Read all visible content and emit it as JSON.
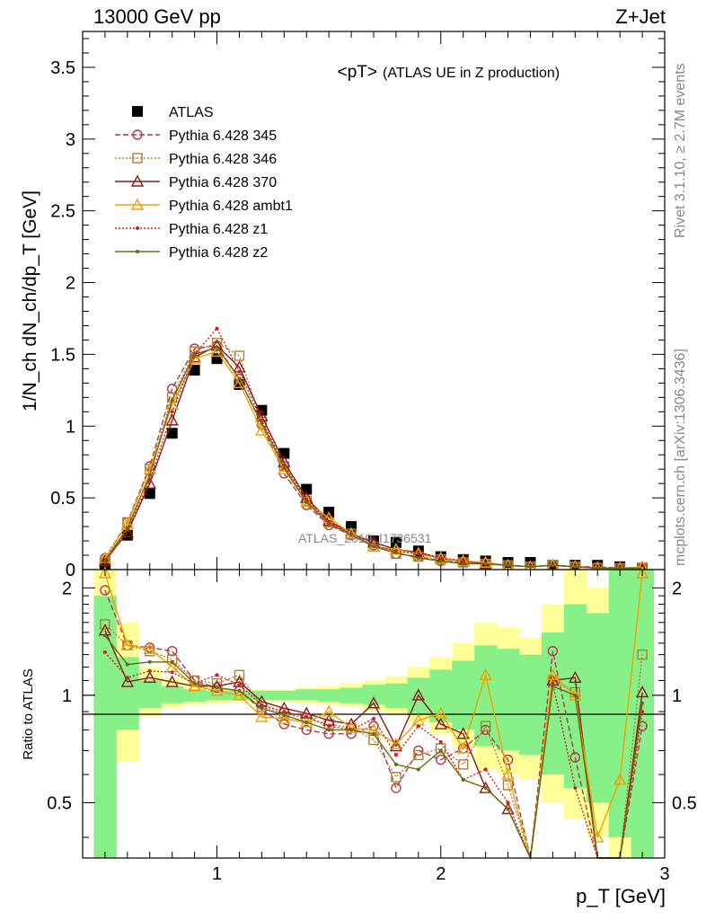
{
  "header": {
    "energy": "13000 GeV pp",
    "process": "Z+Jet",
    "side_rivet": "Rivet 3.1.10, ≥ 2.7M events",
    "side_mcplots": "mcplots.cern.ch [arXiv:1306.3436]",
    "watermark": "ATLAS_2019_I1736531"
  },
  "chart_data": [
    {
      "type": "line",
      "panel": "main",
      "title_main": "<pT>",
      "title_sub": "(ATLAS UE in Z production)",
      "ylabel": "1/N_ch dN_ch/dp_T [GeV]",
      "xlabel": "",
      "xlim": [
        0.4,
        3.0
      ],
      "ylim": [
        0,
        3.75
      ],
      "yticks": [
        "0",
        "0.5",
        "1",
        "1.5",
        "2",
        "2.5",
        "3",
        "3.5"
      ],
      "legend_position": "top-left",
      "x": [
        0.5,
        0.6,
        0.7,
        0.8,
        0.9,
        1.0,
        1.1,
        1.2,
        1.3,
        1.4,
        1.5,
        1.6,
        1.7,
        1.8,
        1.9,
        2.0,
        2.1,
        2.2,
        2.3,
        2.4,
        2.5,
        2.6,
        2.7,
        2.8,
        2.9
      ],
      "series": [
        {
          "name": "ATLAS",
          "color": "#000000",
          "marker": "square-filled",
          "values": [
            0.04,
            0.24,
            0.53,
            0.95,
            1.39,
            1.47,
            1.29,
            1.11,
            0.81,
            0.56,
            0.4,
            0.3,
            0.2,
            0.19,
            0.13,
            0.09,
            0.07,
            0.06,
            0.05,
            0.05,
            0.03,
            0.03,
            0.03,
            0.02,
            0.01
          ]
        },
        {
          "name": "Pythia 6.428 345",
          "color": "#b03a48",
          "marker": "circle-open",
          "dash": "6,3",
          "values": [
            0.08,
            0.33,
            0.72,
            1.26,
            1.54,
            1.56,
            1.33,
            1.01,
            0.67,
            0.45,
            0.31,
            0.24,
            0.17,
            0.11,
            0.09,
            0.06,
            0.05,
            0.04,
            0.03,
            0.02,
            0.03,
            0.02,
            0.02,
            0.01,
            0.01
          ]
        },
        {
          "name": "Pythia 6.428 346",
          "color": "#b08030",
          "marker": "square-open",
          "dash": "2,2",
          "values": [
            0.06,
            0.33,
            0.7,
            1.2,
            1.52,
            1.58,
            1.49,
            1.03,
            0.72,
            0.48,
            0.33,
            0.25,
            0.16,
            0.11,
            0.09,
            0.07,
            0.05,
            0.04,
            0.03,
            0.02,
            0.03,
            0.02,
            0.01,
            0.01,
            0.01
          ]
        },
        {
          "name": "Pythia 6.428 370",
          "color": "#8b1a1a",
          "marker": "triangle-open",
          "dash": "",
          "values": [
            0.06,
            0.26,
            0.6,
            1.04,
            1.48,
            1.56,
            1.41,
            1.07,
            0.75,
            0.5,
            0.34,
            0.25,
            0.19,
            0.14,
            0.12,
            0.08,
            0.06,
            0.04,
            0.03,
            0.02,
            0.03,
            0.02,
            0.01,
            0.01,
            0.01
          ]
        },
        {
          "name": "Pythia 6.428 ambt1",
          "color": "#f0a000",
          "marker": "triangle-open",
          "dash": "",
          "values": [
            0.08,
            0.32,
            0.7,
            1.15,
            1.47,
            1.52,
            1.3,
            0.97,
            0.7,
            0.47,
            0.36,
            0.25,
            0.16,
            0.14,
            0.11,
            0.08,
            0.06,
            0.05,
            0.03,
            0.02,
            0.03,
            0.02,
            0.01,
            0.01,
            0.02
          ]
        },
        {
          "name": "Pythia 6.428 z1",
          "color": "#d42020",
          "marker": "dot",
          "dash": "2,2",
          "values": [
            0.05,
            0.28,
            0.62,
            1.1,
            1.5,
            1.68,
            1.38,
            1.04,
            0.73,
            0.49,
            0.33,
            0.25,
            0.17,
            0.13,
            0.11,
            0.08,
            0.06,
            0.04,
            0.03,
            0.02,
            0.03,
            0.02,
            0.01,
            0.01,
            0.01
          ]
        },
        {
          "name": "Pythia 6.428 z2",
          "color": "#6b6b10",
          "marker": "dot",
          "dash": "",
          "values": [
            0.06,
            0.29,
            0.66,
            1.18,
            1.5,
            1.55,
            1.33,
            1.02,
            0.71,
            0.47,
            0.32,
            0.24,
            0.16,
            0.12,
            0.08,
            0.06,
            0.04,
            0.04,
            0.03,
            0.02,
            0.03,
            0.02,
            0.01,
            0.01,
            0.01
          ]
        }
      ]
    },
    {
      "type": "line",
      "panel": "ratio",
      "ylabel": "Ratio to ATLAS",
      "xlabel": "p_T [GeV]",
      "xlim": [
        0.4,
        3.0
      ],
      "ylim": [
        0.35,
        2.25
      ],
      "xticks": [
        "1",
        "2",
        "3"
      ],
      "yticks": [
        "0.5",
        "1",
        "2"
      ],
      "x": [
        0.5,
        0.6,
        0.7,
        0.8,
        0.9,
        1.0,
        1.1,
        1.2,
        1.3,
        1.4,
        1.5,
        1.6,
        1.7,
        1.8,
        1.9,
        2.0,
        2.1,
        2.2,
        2.3,
        2.4,
        2.5,
        2.6,
        2.7,
        2.8,
        2.9
      ],
      "band_yellow": {
        "lo": [
          0.35,
          0.65,
          0.87,
          0.92,
          0.94,
          0.95,
          0.96,
          0.96,
          0.96,
          0.95,
          0.94,
          0.93,
          0.9,
          0.88,
          0.84,
          0.78,
          0.72,
          0.62,
          0.6,
          0.58,
          0.5,
          0.45,
          0.4,
          0.35,
          0.35
        ],
        "hi": [
          2.25,
          1.6,
          1.2,
          1.12,
          1.07,
          1.05,
          1.04,
          1.04,
          1.04,
          1.05,
          1.06,
          1.08,
          1.1,
          1.13,
          1.2,
          1.28,
          1.4,
          1.6,
          1.55,
          1.45,
          1.8,
          2.25,
          2.0,
          2.25,
          2.25
        ]
      },
      "band_green": {
        "lo": [
          0.35,
          0.8,
          0.92,
          0.95,
          0.96,
          0.97,
          0.97,
          0.97,
          0.97,
          0.97,
          0.96,
          0.95,
          0.94,
          0.92,
          0.88,
          0.84,
          0.8,
          0.72,
          0.7,
          0.68,
          0.6,
          0.55,
          0.5,
          0.4,
          0.35
        ],
        "hi": [
          1.9,
          1.28,
          1.1,
          1.06,
          1.04,
          1.03,
          1.03,
          1.03,
          1.03,
          1.04,
          1.04,
          1.05,
          1.07,
          1.08,
          1.12,
          1.18,
          1.25,
          1.38,
          1.35,
          1.3,
          1.5,
          1.8,
          1.7,
          2.25,
          2.25
        ]
      },
      "series": [
        {
          "name": "Pythia 6.428 345",
          "color": "#b03a48",
          "marker": "circle-open",
          "dash": "6,3",
          "values": [
            1.97,
            1.38,
            1.36,
            1.33,
            1.1,
            1.05,
            1.03,
            0.91,
            0.83,
            0.8,
            0.78,
            0.78,
            0.82,
            0.55,
            0.7,
            0.66,
            0.71,
            0.8,
            0.66,
            0.35,
            1.33,
            0.67,
            0.35,
            0.35,
            0.82
          ]
        },
        {
          "name": "Pythia 6.428 346",
          "color": "#b08030",
          "marker": "square-open",
          "dash": "2,2",
          "values": [
            1.58,
            1.38,
            1.33,
            1.26,
            1.1,
            1.08,
            1.14,
            0.93,
            0.89,
            0.86,
            0.83,
            0.81,
            0.75,
            0.59,
            0.68,
            0.71,
            0.64,
            0.82,
            0.56,
            0.35,
            1.1,
            1.02,
            0.35,
            0.35,
            1.3
          ]
        },
        {
          "name": "Pythia 6.428 370",
          "color": "#8b1a1a",
          "marker": "triangle-open",
          "dash": "",
          "values": [
            1.52,
            1.09,
            1.12,
            1.09,
            1.06,
            1.06,
            1.09,
            0.96,
            0.92,
            0.89,
            0.85,
            0.83,
            0.95,
            0.72,
            1.0,
            0.83,
            0.78,
            0.55,
            0.48,
            0.35,
            1.1,
            1.12,
            0.35,
            0.35,
            1.02
          ]
        },
        {
          "name": "Pythia 6.428 ambt1",
          "color": "#f0a000",
          "marker": "triangle-open",
          "dash": "",
          "values": [
            2.2,
            1.38,
            1.35,
            1.2,
            1.06,
            1.03,
            1.0,
            0.87,
            0.86,
            0.84,
            0.9,
            0.81,
            0.8,
            0.73,
            0.85,
            0.89,
            0.71,
            1.14,
            0.6,
            0.35,
            1.14,
            1.0,
            0.4,
            0.58,
            2.2
          ]
        },
        {
          "name": "Pythia 6.428 z1",
          "color": "#d42020",
          "marker": "dot",
          "dash": "2,2",
          "values": [
            1.32,
            1.12,
            1.17,
            1.16,
            1.08,
            1.14,
            1.07,
            0.94,
            0.9,
            0.87,
            0.82,
            0.8,
            0.86,
            0.68,
            0.82,
            0.74,
            0.58,
            0.62,
            0.5,
            0.35,
            1.08,
            0.55,
            0.35,
            0.35,
            0.9
          ]
        },
        {
          "name": "Pythia 6.428 z2",
          "color": "#6b6b10",
          "marker": "dot",
          "dash": "",
          "values": [
            1.47,
            1.22,
            1.24,
            1.24,
            1.08,
            1.05,
            1.03,
            0.92,
            0.88,
            0.84,
            0.8,
            0.8,
            0.78,
            0.64,
            0.62,
            0.7,
            0.58,
            0.55,
            0.48,
            0.35,
            1.06,
            1.0,
            0.35,
            0.35,
            0.95
          ]
        }
      ]
    }
  ]
}
